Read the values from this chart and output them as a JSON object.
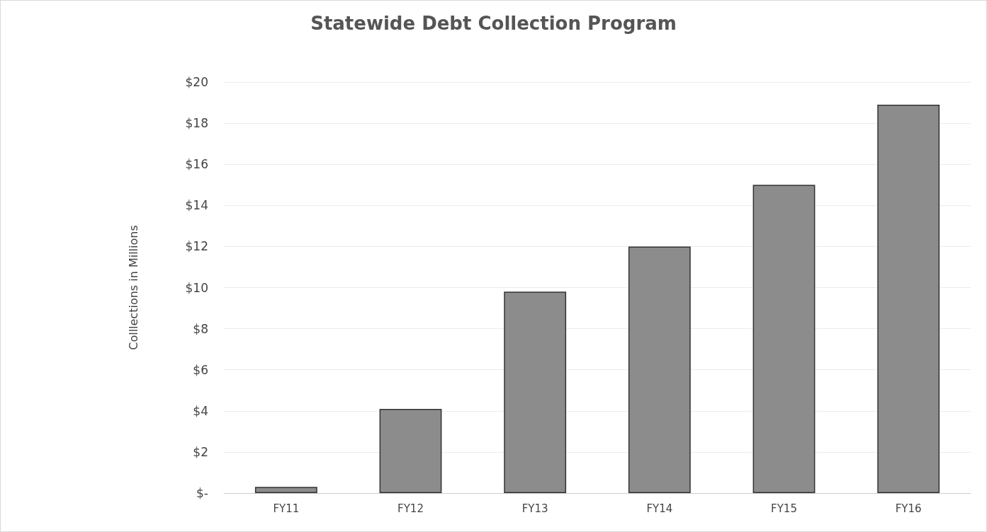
{
  "chart_data": {
    "type": "bar",
    "title": "Statewide Debt Collection Program",
    "ylabel": "Colllections in Millions",
    "categories": [
      "FY11",
      "FY12",
      "FY13",
      "FY14",
      "FY15",
      "FY16"
    ],
    "values": [
      0.3,
      4.1,
      9.8,
      12.0,
      15.0,
      18.9
    ],
    "color": "#8c8c8c",
    "ylim": [
      0,
      20
    ],
    "yticks": [
      {
        "value": 0,
        "label": "$-"
      },
      {
        "value": 2,
        "label": "$2"
      },
      {
        "value": 4,
        "label": "$4"
      },
      {
        "value": 6,
        "label": "$6"
      },
      {
        "value": 8,
        "label": "$8"
      },
      {
        "value": 10,
        "label": "$10"
      },
      {
        "value": 12,
        "label": "$12"
      },
      {
        "value": 14,
        "label": "$14"
      },
      {
        "value": 16,
        "label": "$16"
      },
      {
        "value": 18,
        "label": "$18"
      },
      {
        "value": 20,
        "label": "$20"
      }
    ],
    "grid": true
  }
}
